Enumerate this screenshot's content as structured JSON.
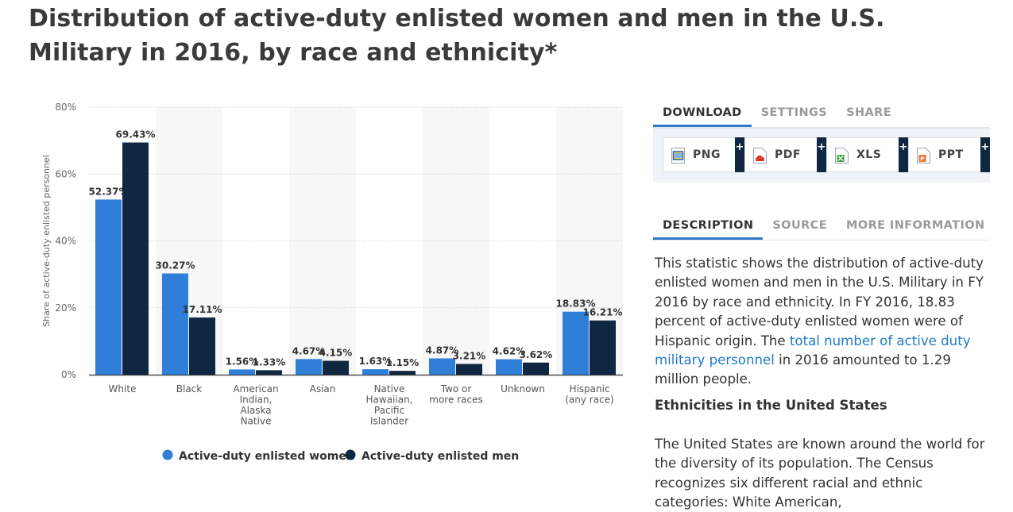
{
  "title": "Distribution of active-duty enlisted women and men in the U.S. Military in 2016, by race and ethnicity*",
  "chart_data": {
    "type": "bar",
    "title": "Distribution of active-duty enlisted women and men in the U.S. Military in 2016, by race and ethnicity*",
    "ylabel": "Share of active-duty enlisted personnel",
    "xlabel": "",
    "ylim": [
      0,
      80
    ],
    "yticks": [
      0,
      20,
      40,
      60,
      80
    ],
    "ytick_labels": [
      "0%",
      "20%",
      "40%",
      "60%",
      "80%"
    ],
    "categories": [
      [
        "White"
      ],
      [
        "Black"
      ],
      [
        "American",
        "Indian,",
        "Alaska",
        "Native"
      ],
      [
        "Asian"
      ],
      [
        "Native",
        "Hawaiian,",
        "Pacific",
        "Islander"
      ],
      [
        "Two or",
        "more races"
      ],
      [
        "Unknown"
      ],
      [
        "Hispanic",
        "(any race)"
      ]
    ],
    "series": [
      {
        "name": "Active-duty enlisted women",
        "color": "#2f7ed8",
        "values": [
          52.37,
          30.27,
          1.56,
          4.67,
          1.63,
          4.87,
          4.62,
          18.83
        ],
        "labels": [
          "52.37%",
          "30.27%",
          "1.56%",
          "4.67%",
          "1.63%",
          "4.87%",
          "4.62%",
          "18.83%"
        ]
      },
      {
        "name": "Active-duty enlisted men",
        "color": "#0f2740",
        "values": [
          69.43,
          17.11,
          1.33,
          4.15,
          1.15,
          3.21,
          3.62,
          16.21
        ],
        "labels": [
          "69.43%",
          "17.11%",
          "1.33%",
          "4.15%",
          "1.15%",
          "3.21%",
          "3.62%",
          "16.21%"
        ]
      }
    ],
    "legend": "bottom",
    "grid": true
  },
  "top_tabs": {
    "download": "DOWNLOAD",
    "settings": "SETTINGS",
    "share": "SHARE"
  },
  "downloads": [
    {
      "label": "PNG",
      "icon": "png-file-icon",
      "plus": "+"
    },
    {
      "label": "PDF",
      "icon": "pdf-file-icon",
      "plus": "+"
    },
    {
      "label": "XLS",
      "icon": "xls-file-icon",
      "plus": "+"
    },
    {
      "label": "PPT",
      "icon": "ppt-file-icon",
      "plus": "+"
    }
  ],
  "info_tabs": {
    "description": "DESCRIPTION",
    "source": "SOURCE",
    "more": "MORE INFORMATION"
  },
  "description": {
    "p1_before": "This statistic shows the distribution of active-duty enlisted women and men in the U.S. Military in FY 2016 by race and ethnicity. In FY 2016, 18.83 percent of active-duty enlisted women were of Hispanic origin. The ",
    "p1_link": "total number of active duty military personnel",
    "p1_after": " in 2016 amounted to 1.29 million people.",
    "heading": "Ethnicities in the United States",
    "p2": "The United States are known around the world for the diversity of its population. The Census recognizes six different racial and ethnic categories: White American,"
  },
  "colors": {
    "accent": "#3178c6",
    "link": "#1d7ac8",
    "women": "#2f7ed8",
    "men": "#0f2740"
  }
}
